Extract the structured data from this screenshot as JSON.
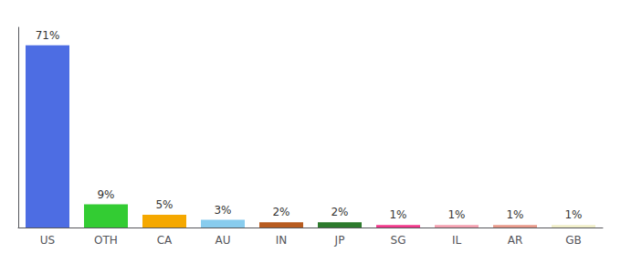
{
  "chart_data": {
    "type": "bar",
    "categories": [
      "US",
      "OTH",
      "CA",
      "AU",
      "IN",
      "JP",
      "SG",
      "IL",
      "AR",
      "GB"
    ],
    "values": [
      71,
      9,
      5,
      3,
      2,
      2,
      1,
      1,
      1,
      1
    ],
    "value_labels": [
      "71%",
      "9%",
      "5%",
      "3%",
      "2%",
      "2%",
      "1%",
      "1%",
      "1%",
      "1%"
    ],
    "data_labels": true,
    "colors": [
      "#4d6de3",
      "#33cc33",
      "#f5a800",
      "#88ccee",
      "#b85c20",
      "#2d7a2d",
      "#f0388a",
      "#f4a0b0",
      "#e8998a",
      "#f0eec8"
    ],
    "ylim": [
      0,
      78
    ],
    "grid": false,
    "tick_labels": "x"
  }
}
